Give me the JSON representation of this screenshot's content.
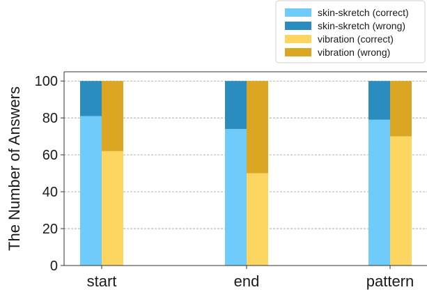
{
  "chart_data": {
    "type": "bar",
    "stacked": true,
    "categories": [
      "start",
      "end",
      "pattern"
    ],
    "series": [
      {
        "name": "skin-skretch (correct)",
        "group": "skin-skretch",
        "color": "#6ecbfa",
        "values": [
          81,
          74,
          79
        ]
      },
      {
        "name": "skin-skretch (wrong)",
        "group": "skin-skretch",
        "color": "#2b8cc0",
        "values": [
          19,
          26,
          21
        ]
      },
      {
        "name": "vibration (correct)",
        "group": "vibration",
        "color": "#fdd662",
        "values": [
          62,
          50,
          70
        ]
      },
      {
        "name": "vibration (wrong)",
        "group": "vibration",
        "color": "#dba722",
        "values": [
          38,
          50,
          30
        ]
      }
    ],
    "ylabel": "The Number of Answers",
    "xlabel": "",
    "ylim": [
      0,
      105
    ],
    "yticks": [
      0,
      20,
      40,
      60,
      80,
      100
    ],
    "grid": "horizontal-dashed",
    "legend_position": "top-right"
  }
}
